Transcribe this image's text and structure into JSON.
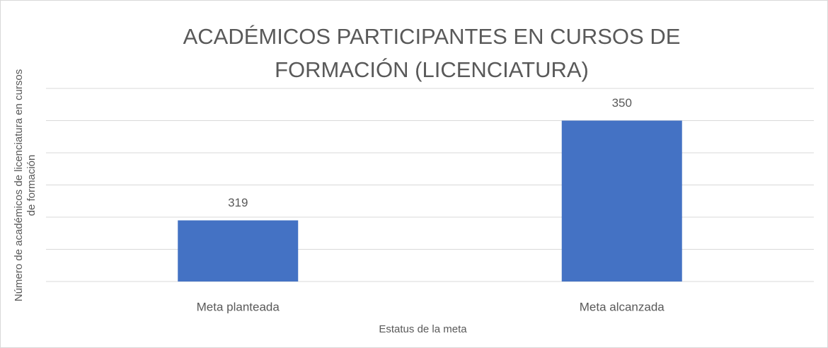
{
  "chart_data": {
    "type": "bar",
    "title": "ACADÉMICOS PARTICIPANTES EN CURSOS DE FORMACIÓN (LICENCIATURA)",
    "xlabel": "Estatus de la meta",
    "ylabel": "Número de académicos de licenciatura en cursos de formación",
    "categories": [
      "Meta planteada",
      "Meta alcanzada"
    ],
    "values": [
      319,
      350
    ],
    "color": "#4472c4",
    "ylim": [
      300,
      360
    ],
    "yticks": [
      300,
      310,
      320,
      330,
      340,
      350,
      360
    ],
    "grid": true
  }
}
